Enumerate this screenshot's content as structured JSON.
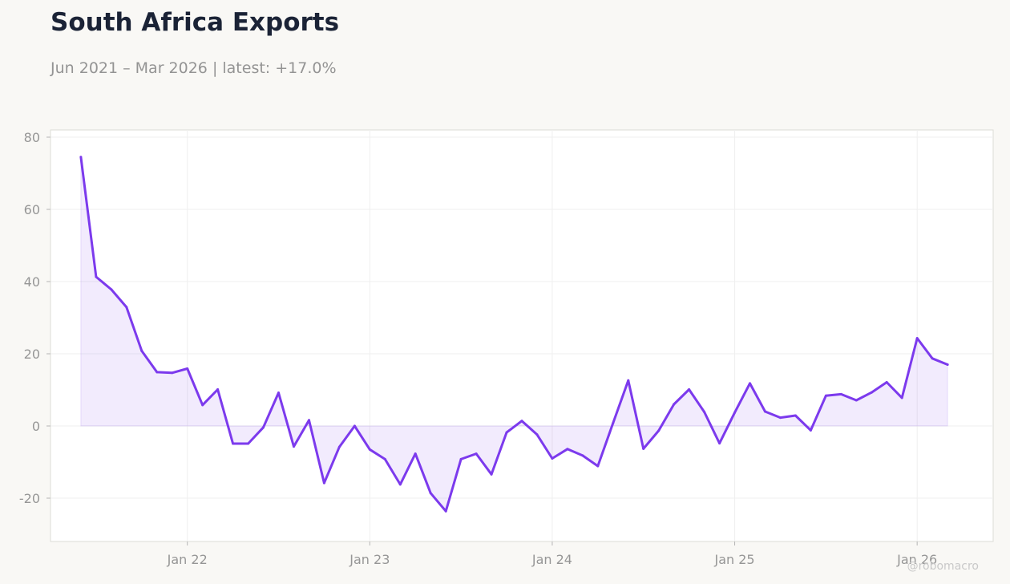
{
  "header": {
    "title": "South Africa Exports",
    "subtitle": "Jun 2021 – Mar 2026 | latest: +17.0%"
  },
  "watermark": "@robomacro",
  "colors": {
    "line": "#7c3aed",
    "fill": "#f1ecfb",
    "background": "#f9f8f5",
    "plot_background": "#ffffff"
  },
  "chart_data": {
    "type": "area",
    "title": "South Africa Exports",
    "xlabel": "",
    "ylabel": "",
    "grid": true,
    "legend": "none",
    "ylim": [
      -32,
      82
    ],
    "xlim": [
      "2021-04",
      "2026-06"
    ],
    "y_ticks": [
      -20,
      0,
      20,
      40,
      60,
      80
    ],
    "x_ticks": [
      {
        "label": "Jan 22",
        "date": "2022-01"
      },
      {
        "label": "Jan 23",
        "date": "2023-01"
      },
      {
        "label": "Jan 24",
        "date": "2024-01"
      },
      {
        "label": "Jan 25",
        "date": "2025-01"
      },
      {
        "label": "Jan 26",
        "date": "2026-01"
      }
    ],
    "x": [
      "2021-06",
      "2021-07",
      "2021-08",
      "2021-09",
      "2021-10",
      "2021-11",
      "2021-12",
      "2022-01",
      "2022-02",
      "2022-03",
      "2022-04",
      "2022-05",
      "2022-06",
      "2022-07",
      "2022-08",
      "2022-09",
      "2022-10",
      "2022-11",
      "2022-12",
      "2023-01",
      "2023-02",
      "2023-03",
      "2023-04",
      "2023-05",
      "2023-06",
      "2023-07",
      "2023-08",
      "2023-09",
      "2023-10",
      "2023-11",
      "2023-12",
      "2024-01",
      "2024-02",
      "2024-03",
      "2024-04",
      "2024-05",
      "2024-06",
      "2024-07",
      "2024-08",
      "2024-09",
      "2024-10",
      "2024-11",
      "2024-12",
      "2025-01",
      "2025-02",
      "2025-03",
      "2025-04",
      "2025-05",
      "2025-06",
      "2025-07",
      "2025-08",
      "2025-09",
      "2025-10",
      "2025-11",
      "2025-12",
      "2026-01",
      "2026-02",
      "2026-03"
    ],
    "values": [
      74.5,
      41.3,
      37.8,
      32.9,
      20.8,
      14.9,
      14.7,
      15.9,
      5.8,
      10.1,
      -4.9,
      -4.9,
      -0.4,
      9.2,
      -5.7,
      1.6,
      -15.8,
      -5.8,
      0.0,
      -6.5,
      -9.2,
      -16.2,
      -7.7,
      -18.6,
      -23.6,
      -9.2,
      -7.7,
      -13.4,
      -1.8,
      1.4,
      -2.4,
      -9.0,
      -6.4,
      -8.2,
      -11.1,
      0.8,
      12.6,
      -6.3,
      -1.3,
      6.0,
      10.1,
      3.9,
      -4.8,
      3.7,
      11.8,
      4.0,
      2.3,
      2.9,
      -1.2,
      8.4,
      8.8,
      7.1,
      9.3,
      12.1,
      7.8,
      24.3,
      18.7,
      17.0
    ]
  }
}
